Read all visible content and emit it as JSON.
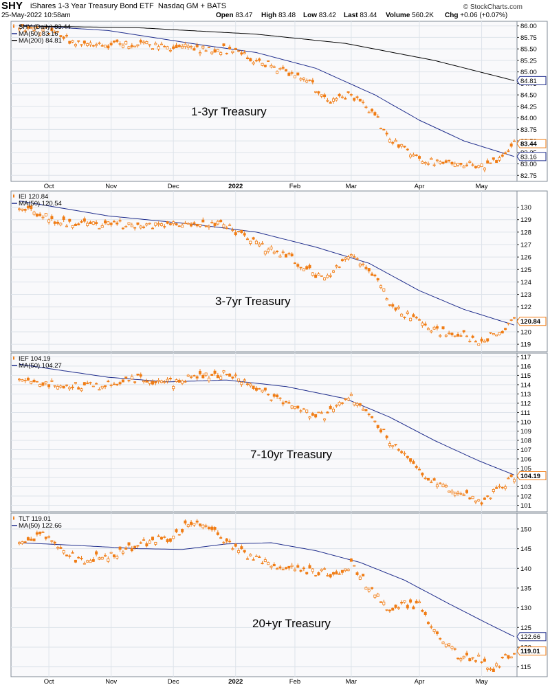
{
  "header": {
    "symbol": "SHY",
    "name": "iShares 1-3 Year Treasury Bond ETF",
    "exchange": "Nasdaq GM + BATS",
    "date": "25-May-2022 10:58am",
    "open_label": "Open",
    "open": "83.47",
    "high_label": "High",
    "high": "83.48",
    "low_label": "Low",
    "low": "83.42",
    "last_label": "Last",
    "last": "83.44",
    "volume_label": "Volume",
    "volume": "560.2K",
    "chg_label": "Chg",
    "chg": "+0.06 (+0.07%)",
    "copyright": "© StockCharts.com"
  },
  "colors": {
    "price": "#f07c14",
    "ma50": "#1f2d8c",
    "ma200": "#000000",
    "grid": "#dde3ea",
    "bg": "#f9f9fb",
    "ma_label_border": "#1f2d8c",
    "last_label_border": "#f07c14"
  },
  "x_axis": {
    "ticks": [
      {
        "label": "Oct",
        "bold": false
      },
      {
        "label": "Nov",
        "bold": false
      },
      {
        "label": "Dec",
        "bold": false
      },
      {
        "label": "2022",
        "bold": true
      },
      {
        "label": "Feb",
        "bold": false
      },
      {
        "label": "Mar",
        "bold": false
      },
      {
        "label": "Apr",
        "bold": false
      },
      {
        "label": "May",
        "bold": false
      }
    ],
    "tick_index": [
      10,
      31,
      52,
      73,
      93,
      112,
      135,
      156
    ],
    "n_days": 168
  },
  "chart_data": [
    {
      "type": "line",
      "legend": [
        {
          "text": "SHY (Daily) 83.44",
          "color": "#f07c14",
          "kind": "price"
        },
        {
          "text": "MA(50) 83.16",
          "color": "#1f2d8c",
          "kind": "line"
        },
        {
          "text": "MA(200) 84.81",
          "color": "#000000",
          "kind": "line"
        }
      ],
      "annotation": "1-3yr Treasury",
      "ylim": [
        82.62,
        86.1
      ],
      "yticks": [
        "86.00",
        "85.75",
        "85.50",
        "85.25",
        "85.00",
        "84.75",
        "84.50",
        "84.25",
        "84.00",
        "83.75",
        "83.50",
        "83.25",
        "83.00",
        "82.75"
      ],
      "labels": [
        {
          "value": 84.81,
          "text": "84.81",
          "type": "ma"
        },
        {
          "value": 83.44,
          "text": "83.44",
          "type": "last"
        },
        {
          "value": 83.16,
          "text": "83.16",
          "type": "ma"
        }
      ],
      "price_anchors": [
        [
          0,
          86.0
        ],
        [
          10,
          85.88
        ],
        [
          20,
          85.62
        ],
        [
          31,
          85.58
        ],
        [
          40,
          85.62
        ],
        [
          50,
          85.55
        ],
        [
          60,
          85.5
        ],
        [
          70,
          85.48
        ],
        [
          80,
          85.25
        ],
        [
          90,
          85.0
        ],
        [
          97,
          84.85
        ],
        [
          103,
          84.4
        ],
        [
          108,
          84.4
        ],
        [
          112,
          84.5
        ],
        [
          118,
          84.2
        ],
        [
          126,
          83.5
        ],
        [
          135,
          83.1
        ],
        [
          142,
          83.05
        ],
        [
          150,
          82.98
        ],
        [
          156,
          82.95
        ],
        [
          162,
          83.1
        ],
        [
          167,
          83.44
        ]
      ],
      "ma": [
        {
          "name": "MA(50)",
          "value": 83.16,
          "anchors": [
            [
              0,
              86.02
            ],
            [
              30,
              85.9
            ],
            [
              60,
              85.6
            ],
            [
              80,
              85.42
            ],
            [
              100,
              85.08
            ],
            [
              120,
              84.5
            ],
            [
              135,
              83.95
            ],
            [
              150,
              83.5
            ],
            [
              167,
              83.16
            ]
          ]
        },
        {
          "name": "MA(200)",
          "value": 84.81,
          "anchors": [
            [
              0,
              86.0
            ],
            [
              40,
              85.96
            ],
            [
              80,
              85.82
            ],
            [
              110,
              85.62
            ],
            [
              140,
              85.25
            ],
            [
              167,
              84.81
            ]
          ]
        }
      ],
      "seed": 11
    },
    {
      "type": "line",
      "legend": [
        {
          "text": "IEI 120.84",
          "color": "#f07c14",
          "kind": "price"
        },
        {
          "text": "MA(50) 120.54",
          "color": "#1f2d8c",
          "kind": "line"
        }
      ],
      "annotation": "3-7yr Treasury",
      "ylim": [
        118.4,
        131.3
      ],
      "yticks": [
        "130",
        "129",
        "128",
        "127",
        "126",
        "125",
        "124",
        "123",
        "122",
        "121",
        "120",
        "119"
      ],
      "labels": [
        {
          "value": 120.84,
          "text": "120.84",
          "type": "last"
        }
      ],
      "price_anchors": [
        [
          0,
          130.0
        ],
        [
          10,
          129.1
        ],
        [
          20,
          128.6
        ],
        [
          31,
          128.6
        ],
        [
          40,
          128.5
        ],
        [
          52,
          128.6
        ],
        [
          60,
          128.7
        ],
        [
          70,
          128.5
        ],
        [
          80,
          127.0
        ],
        [
          90,
          126.2
        ],
        [
          97,
          125.0
        ],
        [
          103,
          124.3
        ],
        [
          108,
          125.4
        ],
        [
          112,
          126.4
        ],
        [
          118,
          125.1
        ],
        [
          126,
          122.0
        ],
        [
          135,
          120.8
        ],
        [
          142,
          120.0
        ],
        [
          150,
          119.7
        ],
        [
          156,
          119.3
        ],
        [
          162,
          120.0
        ],
        [
          167,
          120.84
        ]
      ],
      "ma": [
        {
          "name": "MA(50)",
          "value": 120.54,
          "anchors": [
            [
              0,
              130.5
            ],
            [
              30,
              129.3
            ],
            [
              60,
              128.6
            ],
            [
              80,
              128.0
            ],
            [
              100,
              126.8
            ],
            [
              118,
              125.5
            ],
            [
              135,
              123.3
            ],
            [
              150,
              121.8
            ],
            [
              167,
              120.54
            ]
          ]
        }
      ],
      "seed": 22
    },
    {
      "type": "line",
      "legend": [
        {
          "text": "IEF 104.19",
          "color": "#f07c14",
          "kind": "price"
        },
        {
          "text": "MA(50) 104.27",
          "color": "#1f2d8c",
          "kind": "line"
        }
      ],
      "annotation": "7-10yr Treasury",
      "ylim": [
        100.3,
        117.4
      ],
      "yticks": [
        "117",
        "116",
        "115",
        "114",
        "113",
        "112",
        "111",
        "110",
        "109",
        "108",
        "107",
        "106",
        "105",
        "104",
        "103",
        "102",
        "101"
      ],
      "labels": [
        {
          "value": 104.19,
          "text": "104.19",
          "type": "last"
        }
      ],
      "price_anchors": [
        [
          0,
          115.0
        ],
        [
          10,
          114.1
        ],
        [
          20,
          113.8
        ],
        [
          31,
          114.0
        ],
        [
          40,
          114.6
        ],
        [
          52,
          114.2
        ],
        [
          60,
          114.9
        ],
        [
          70,
          115.2
        ],
        [
          80,
          113.5
        ],
        [
          90,
          112.0
        ],
        [
          97,
          111.0
        ],
        [
          103,
          110.5
        ],
        [
          108,
          111.8
        ],
        [
          112,
          112.6
        ],
        [
          118,
          111.0
        ],
        [
          126,
          107.6
        ],
        [
          135,
          104.5
        ],
        [
          142,
          103.0
        ],
        [
          150,
          102.4
        ],
        [
          156,
          101.5
        ],
        [
          162,
          102.8
        ],
        [
          167,
          104.19
        ]
      ],
      "ma": [
        {
          "name": "MA(50)",
          "value": 104.27,
          "anchors": [
            [
              0,
              116.2
            ],
            [
              30,
              114.8
            ],
            [
              50,
              114.3
            ],
            [
              70,
              114.5
            ],
            [
              90,
              113.8
            ],
            [
              110,
              112.5
            ],
            [
              125,
              110.5
            ],
            [
              140,
              108.0
            ],
            [
              155,
              105.8
            ],
            [
              167,
              104.27
            ]
          ]
        }
      ],
      "seed": 33
    },
    {
      "type": "line",
      "legend": [
        {
          "text": "TLT 119.01",
          "color": "#f07c14",
          "kind": "price"
        },
        {
          "text": "MA(50) 122.66",
          "color": "#1f2d8c",
          "kind": "line"
        }
      ],
      "annotation": "20+yr Treasury",
      "ylim": [
        112.5,
        154.0
      ],
      "yticks": [
        "150",
        "145",
        "140",
        "135",
        "130",
        "125",
        "120",
        "115"
      ],
      "labels": [
        {
          "value": 122.66,
          "text": "122.66",
          "type": "ma"
        },
        {
          "value": 119.01,
          "text": "119.01",
          "type": "last"
        }
      ],
      "price_anchors": [
        [
          0,
          146.0
        ],
        [
          8,
          148.5
        ],
        [
          12,
          146.0
        ],
        [
          20,
          142.0
        ],
        [
          31,
          143.5
        ],
        [
          40,
          146.0
        ],
        [
          52,
          148.0
        ],
        [
          58,
          152.0
        ],
        [
          66,
          149.0
        ],
        [
          75,
          144.0
        ],
        [
          85,
          141.0
        ],
        [
          93,
          140.0
        ],
        [
          100,
          139.0
        ],
        [
          108,
          138.5
        ],
        [
          112,
          141.5
        ],
        [
          118,
          135.0
        ],
        [
          124,
          130.0
        ],
        [
          130,
          131.0
        ],
        [
          135,
          130.5
        ],
        [
          142,
          122.0
        ],
        [
          148,
          118.0
        ],
        [
          156,
          117.0
        ],
        [
          160,
          114.5
        ],
        [
          167,
          119.01
        ]
      ],
      "ma": [
        {
          "name": "MA(50)",
          "value": 122.66,
          "anchors": [
            [
              0,
              146.5
            ],
            [
              20,
              145.8
            ],
            [
              40,
              145.0
            ],
            [
              55,
              144.8
            ],
            [
              70,
              146.2
            ],
            [
              85,
              146.5
            ],
            [
              100,
              144.5
            ],
            [
              115,
              141.5
            ],
            [
              130,
              137.0
            ],
            [
              145,
              131.0
            ],
            [
              158,
              126.0
            ],
            [
              167,
              122.66
            ]
          ]
        }
      ],
      "seed": 44
    }
  ]
}
